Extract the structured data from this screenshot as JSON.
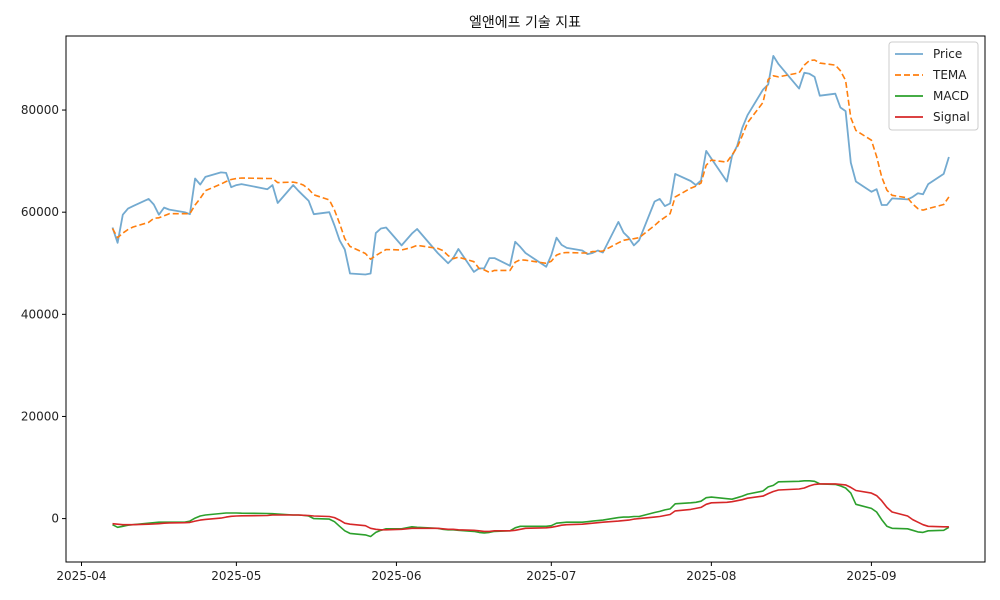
{
  "chart_data": {
    "type": "line",
    "title": "엘앤에프 기술 지표",
    "xlabel": "",
    "ylabel": "",
    "x_ticks": [
      "2025-04-01",
      "2025-05-01",
      "2025-06-01",
      "2025-07-01",
      "2025-08-01",
      "2025-09-01"
    ],
    "x_tick_labels": [
      "2025-04",
      "2025-05",
      "2025-06",
      "2025-07",
      "2025-08",
      "2025-09"
    ],
    "xlim": [
      "2025-03-29",
      "2025-09-23"
    ],
    "ylim": [
      -8500,
      94500
    ],
    "y_ticks": [
      0,
      20000,
      40000,
      60000,
      80000
    ],
    "y_tick_labels": [
      "0",
      "20000",
      "40000",
      "60000",
      "80000"
    ],
    "grid": false,
    "legend_position": "top-right",
    "dates": [
      "2025-04-07",
      "2025-04-08",
      "2025-04-09",
      "2025-04-10",
      "2025-04-11",
      "2025-04-14",
      "2025-04-15",
      "2025-04-16",
      "2025-04-17",
      "2025-04-18",
      "2025-04-21",
      "2025-04-22",
      "2025-04-23",
      "2025-04-24",
      "2025-04-25",
      "2025-04-28",
      "2025-04-29",
      "2025-04-30",
      "2025-05-01",
      "2025-05-02",
      "2025-05-07",
      "2025-05-08",
      "2025-05-09",
      "2025-05-12",
      "2025-05-13",
      "2025-05-14",
      "2025-05-15",
      "2025-05-16",
      "2025-05-19",
      "2025-05-20",
      "2025-05-21",
      "2025-05-22",
      "2025-05-23",
      "2025-05-26",
      "2025-05-27",
      "2025-05-28",
      "2025-05-29",
      "2025-05-30",
      "2025-06-02",
      "2025-06-04",
      "2025-06-05",
      "2025-06-09",
      "2025-06-10",
      "2025-06-11",
      "2025-06-12",
      "2025-06-13",
      "2025-06-16",
      "2025-06-17",
      "2025-06-18",
      "2025-06-19",
      "2025-06-20",
      "2025-06-23",
      "2025-06-24",
      "2025-06-25",
      "2025-06-26",
      "2025-06-30",
      "2025-07-01",
      "2025-07-02",
      "2025-07-03",
      "2025-07-04",
      "2025-07-07",
      "2025-07-08",
      "2025-07-09",
      "2025-07-10",
      "2025-07-11",
      "2025-07-14",
      "2025-07-15",
      "2025-07-16",
      "2025-07-17",
      "2025-07-18",
      "2025-07-21",
      "2025-07-22",
      "2025-07-23",
      "2025-07-24",
      "2025-07-25",
      "2025-07-28",
      "2025-07-29",
      "2025-07-30",
      "2025-07-31",
      "2025-08-01",
      "2025-08-04",
      "2025-08-05",
      "2025-08-06",
      "2025-08-07",
      "2025-08-08",
      "2025-08-11",
      "2025-08-12",
      "2025-08-13",
      "2025-08-14",
      "2025-08-18",
      "2025-08-19",
      "2025-08-20",
      "2025-08-21",
      "2025-08-22",
      "2025-08-25",
      "2025-08-26",
      "2025-08-27",
      "2025-08-28",
      "2025-08-29",
      "2025-09-01",
      "2025-09-02",
      "2025-09-03",
      "2025-09-04",
      "2025-09-05",
      "2025-09-08",
      "2025-09-09",
      "2025-09-10",
      "2025-09-11",
      "2025-09-12",
      "2025-09-15",
      "2025-09-16"
    ],
    "series": [
      {
        "name": "Price",
        "color": "#73aad0",
        "dash": "solid",
        "values": [
          57000,
          54000,
          59500,
          60700,
          61200,
          62600,
          61500,
          59500,
          60900,
          60500,
          60000,
          59600,
          66600,
          65400,
          66900,
          67800,
          67700,
          64900,
          65300,
          65500,
          64500,
          65300,
          61800,
          65300,
          64200,
          63200,
          62200,
          59600,
          60000,
          57400,
          54500,
          52700,
          48000,
          47800,
          48000,
          55900,
          56800,
          57000,
          53500,
          55800,
          56700,
          52000,
          51000,
          50000,
          51000,
          52800,
          48300,
          49000,
          49000,
          51000,
          51000,
          49500,
          54200,
          53200,
          52000,
          49300,
          51600,
          55000,
          53600,
          53000,
          52500,
          51800,
          52000,
          52500,
          52100,
          58100,
          56000,
          55000,
          53500,
          54500,
          62100,
          62600,
          61200,
          61700,
          67500,
          66100,
          65300,
          66200,
          72000,
          70500,
          66000,
          71000,
          73000,
          76500,
          79000,
          84000,
          85000,
          90600,
          89000,
          84200,
          87300,
          87100,
          86500,
          82800,
          83200,
          80500,
          79800,
          69700,
          66000,
          64000,
          64500,
          61400,
          61400,
          62700,
          62500,
          63000,
          63700,
          63500,
          65500,
          67500,
          70800
        ]
      },
      {
        "name": "TEMA",
        "color": "#ff7f0e",
        "dash": "dashed",
        "values": [
          56800,
          55000,
          55900,
          56600,
          57100,
          58000,
          58800,
          58900,
          59300,
          59700,
          59700,
          59700,
          61400,
          62700,
          64200,
          65500,
          66000,
          66400,
          66600,
          66700,
          66600,
          66600,
          65800,
          65900,
          65700,
          65300,
          64500,
          63400,
          62400,
          60400,
          57800,
          54800,
          53300,
          51900,
          50800,
          51500,
          52100,
          52700,
          52600,
          53100,
          53500,
          52900,
          52500,
          51500,
          50900,
          51200,
          50300,
          49000,
          48700,
          48200,
          48600,
          48600,
          50200,
          50700,
          50600,
          50000,
          50400,
          51600,
          52000,
          52100,
          52000,
          52000,
          52300,
          52300,
          52400,
          54000,
          54500,
          54700,
          54800,
          55000,
          57400,
          58300,
          59000,
          59700,
          63000,
          64700,
          65100,
          65700,
          69200,
          70200,
          69800,
          71200,
          72700,
          75000,
          77500,
          81500,
          86000,
          86700,
          86500,
          87300,
          88800,
          89700,
          89800,
          89200,
          88800,
          87700,
          85800,
          78500,
          76000,
          74100,
          70900,
          66900,
          64300,
          63300,
          62800,
          61600,
          60700,
          60400,
          60700,
          61500,
          63000
        ]
      },
      {
        "name": "MACD",
        "color": "#2ca02c",
        "dash": "solid",
        "values": [
          -1200,
          -1700,
          -1500,
          -1300,
          -1200,
          -900,
          -800,
          -700,
          -700,
          -700,
          -700,
          -500,
          100,
          500,
          700,
          1000,
          1100,
          1100,
          1100,
          1050,
          1000,
          950,
          900,
          700,
          700,
          650,
          500,
          0,
          -100,
          -600,
          -1500,
          -2400,
          -2900,
          -3200,
          -3500,
          -2700,
          -2300,
          -2000,
          -2000,
          -1600,
          -1700,
          -1900,
          -2100,
          -2200,
          -2200,
          -2300,
          -2500,
          -2700,
          -2800,
          -2700,
          -2500,
          -2400,
          -1800,
          -1500,
          -1500,
          -1500,
          -1400,
          -900,
          -800,
          -700,
          -700,
          -600,
          -500,
          -400,
          -300,
          200,
          300,
          300,
          400,
          400,
          1200,
          1400,
          1700,
          1900,
          2900,
          3100,
          3200,
          3400,
          4100,
          4200,
          3900,
          3800,
          4100,
          4400,
          4800,
          5400,
          6200,
          6500,
          7200,
          7300,
          7400,
          7400,
          7300,
          6800,
          6700,
          6400,
          6000,
          5000,
          2800,
          2000,
          1300,
          -200,
          -1500,
          -1900,
          -2000,
          -2300,
          -2600,
          -2700,
          -2400,
          -2300,
          -1700
        ]
      },
      {
        "name": "Signal",
        "color": "#d62728",
        "dash": "solid",
        "values": [
          -1000,
          -1100,
          -1200,
          -1200,
          -1200,
          -1100,
          -1050,
          -1000,
          -900,
          -850,
          -800,
          -750,
          -500,
          -300,
          -150,
          100,
          300,
          450,
          500,
          550,
          600,
          700,
          700,
          700,
          700,
          650,
          600,
          500,
          400,
          200,
          -300,
          -900,
          -1100,
          -1400,
          -1900,
          -2100,
          -2200,
          -2200,
          -2100,
          -1900,
          -1900,
          -1900,
          -2000,
          -2100,
          -2100,
          -2200,
          -2300,
          -2400,
          -2500,
          -2500,
          -2400,
          -2400,
          -2300,
          -2100,
          -1900,
          -1800,
          -1700,
          -1500,
          -1300,
          -1200,
          -1100,
          -1000,
          -900,
          -800,
          -700,
          -500,
          -400,
          -300,
          -100,
          0,
          300,
          400,
          600,
          800,
          1500,
          1800,
          2000,
          2200,
          2800,
          3100,
          3200,
          3300,
          3500,
          3700,
          4000,
          4400,
          4900,
          5300,
          5600,
          5800,
          6000,
          6400,
          6700,
          6800,
          6800,
          6700,
          6600,
          6100,
          5500,
          5000,
          4500,
          3500,
          2200,
          1300,
          500,
          -200,
          -700,
          -1200,
          -1500,
          -1600,
          -1600
        ]
      }
    ]
  }
}
